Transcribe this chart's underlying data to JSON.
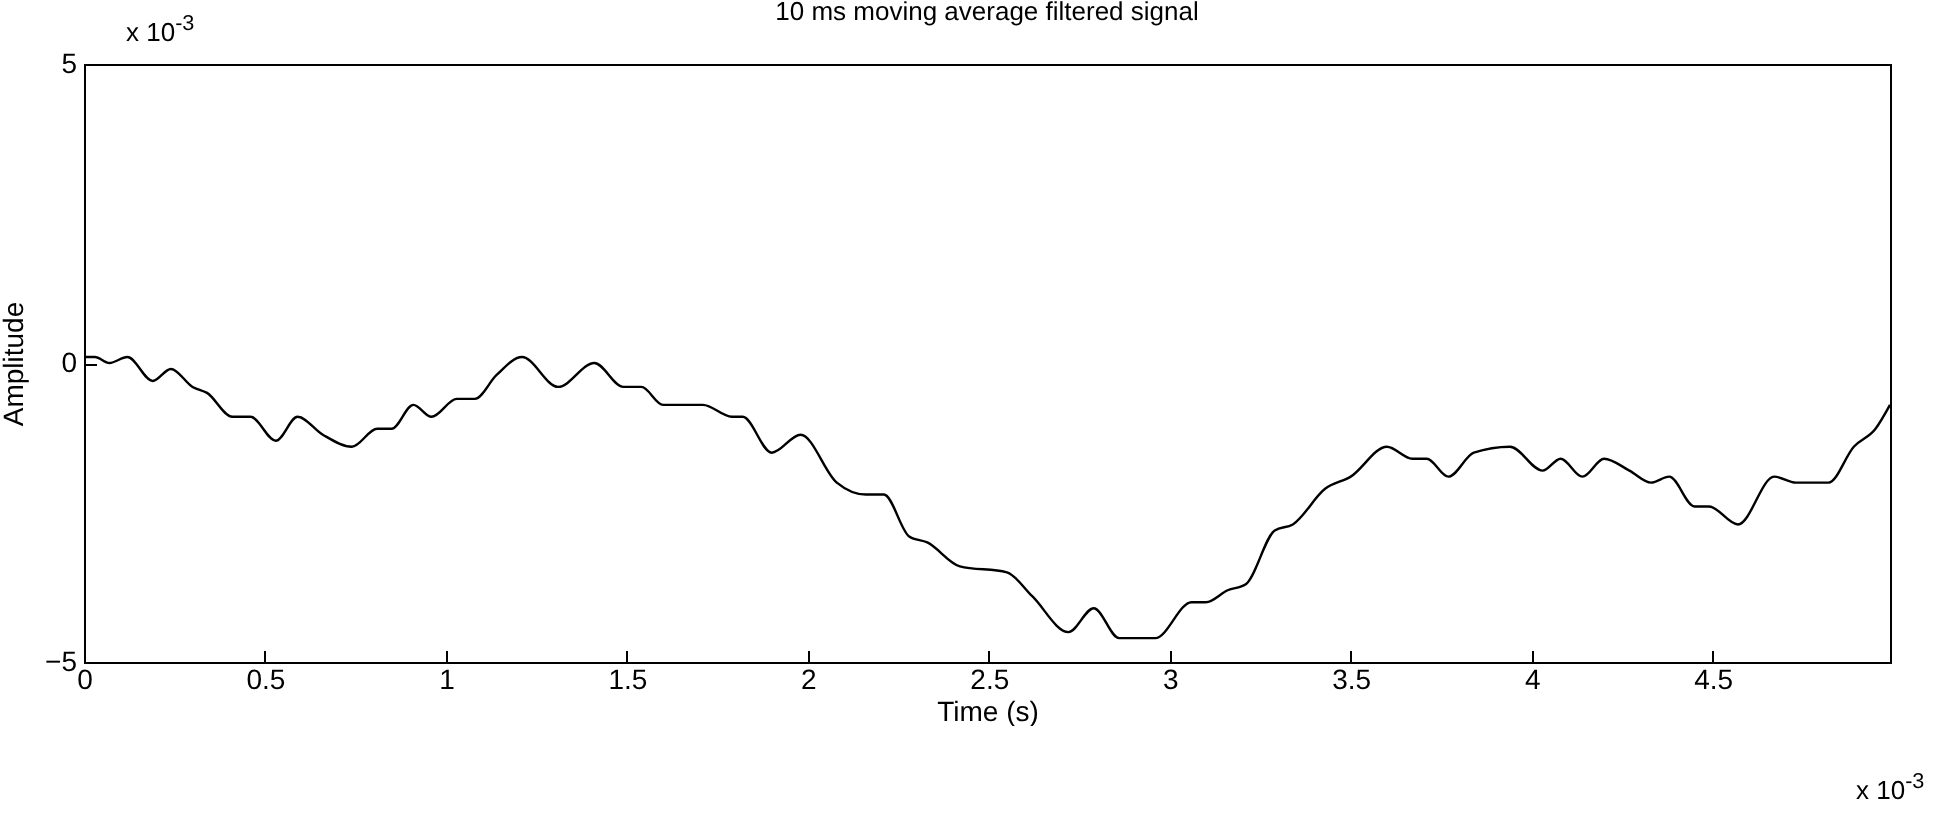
{
  "chart_data": {
    "type": "line",
    "title": "10 ms moving average filtered signal",
    "xlabel": "Time (s)",
    "ylabel": "Amplitude",
    "x": [
      0,
      0.03,
      0.07,
      0.12,
      0.19,
      0.24,
      0.3,
      0.34,
      0.41,
      0.46,
      0.53,
      0.59,
      0.66,
      0.74,
      0.81,
      0.85,
      0.91,
      0.96,
      1.03,
      1.08,
      1.14,
      1.21,
      1.31,
      1.41,
      1.49,
      1.54,
      1.6,
      1.68,
      1.71,
      1.79,
      1.82,
      1.9,
      1.98,
      2.08,
      2.16,
      2.21,
      2.28,
      2.33,
      2.42,
      2.55,
      2.62,
      2.72,
      2.79,
      2.86,
      2.96,
      3.06,
      3.1,
      3.16,
      3.21,
      3.29,
      3.34,
      3.43,
      3.5,
      3.6,
      3.67,
      3.71,
      3.77,
      3.84,
      3.94,
      4.03,
      4.08,
      4.14,
      4.2,
      4.27,
      4.33,
      4.38,
      4.45,
      4.49,
      4.57,
      4.67,
      4.73,
      4.82,
      4.89,
      4.95,
      4.99
    ],
    "series": [
      {
        "color": "#000000",
        "values": [
          0.1,
          0.1,
          0,
          0.1,
          -0.3,
          -0.1,
          -0.4,
          -0.5,
          -0.9,
          -0.9,
          -1.3,
          -0.9,
          -1.2,
          -1.4,
          -1.1,
          -1.1,
          -0.7,
          -0.9,
          -0.6,
          -0.6,
          -0.2,
          0.1,
          -0.4,
          0,
          -0.4,
          -0.4,
          -0.7,
          -0.7,
          -0.7,
          -0.9,
          -0.9,
          -1.5,
          -1.2,
          -2,
          -2.2,
          -2.2,
          -2.9,
          -3,
          -3.4,
          -3.5,
          -3.9,
          -4.5,
          -4.1,
          -4.6,
          -4.6,
          -4,
          -4,
          -3.8,
          -3.7,
          -2.8,
          -2.7,
          -2.1,
          -1.9,
          -1.4,
          -1.6,
          -1.6,
          -1.9,
          -1.5,
          -1.4,
          -1.8,
          -1.6,
          -1.9,
          -1.6,
          -1.8,
          -2,
          -1.9,
          -2.4,
          -2.4,
          -2.7,
          -1.9,
          -2,
          -2,
          -1.4,
          -1.1,
          -0.7
        ]
      }
    ],
    "xlim": [
      0,
      4.99
    ],
    "xticks": [
      0,
      0.5,
      1,
      1.5,
      2,
      2.5,
      3,
      3.5,
      4,
      4.5
    ],
    "ylim": [
      -5,
      5
    ],
    "yticks": [
      {
        "value": -5,
        "label": "−5"
      },
      0,
      5
    ],
    "annotations": [
      "x 10$^{-3}$",
      "x 10$^{-3}$"
    ],
    "grid": false,
    "line_style": "solid"
  }
}
